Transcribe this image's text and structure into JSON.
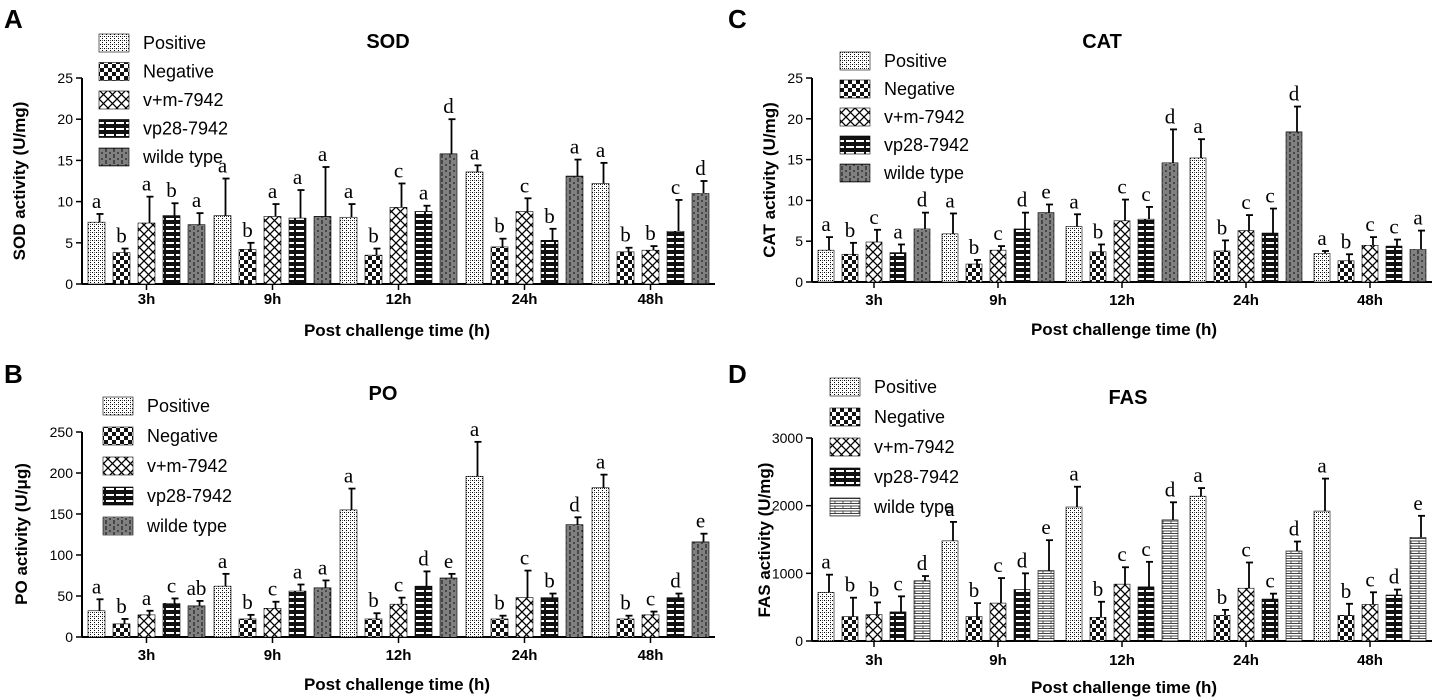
{
  "figure": {
    "legend_entries": [
      "Positive",
      "Negative",
      "v+m-7942",
      "vp28-7942",
      "wilde type"
    ]
  },
  "chart_data": [
    {
      "panel": "A",
      "type": "bar",
      "title": "SOD",
      "xlabel": "Post challenge time (h)",
      "ylabel": "SOD activity (U/mg)",
      "ylim": [
        0,
        25
      ],
      "yticks": [
        0,
        5,
        10,
        15,
        20,
        25
      ],
      "categories": [
        "3h",
        "9h",
        "12h",
        "24h",
        "48h"
      ],
      "legend": "top-left",
      "series": [
        {
          "name": "Positive",
          "values": [
            7.5,
            8.3,
            8.1,
            13.6,
            12.2
          ],
          "errors": [
            1.0,
            4.5,
            1.6,
            0.8,
            2.5
          ],
          "labels": [
            "a",
            "a",
            "a",
            "a",
            "a"
          ]
        },
        {
          "name": "Negative",
          "values": [
            3.8,
            4.2,
            3.5,
            4.5,
            3.9
          ],
          "errors": [
            0.5,
            0.8,
            0.8,
            1.0,
            0.5
          ],
          "labels": [
            "b",
            "b",
            "b",
            "b",
            "b"
          ]
        },
        {
          "name": "v+m-7942",
          "values": [
            7.4,
            8.2,
            9.3,
            8.8,
            4.1
          ],
          "errors": [
            3.2,
            1.5,
            2.9,
            1.6,
            0.5
          ],
          "labels": [
            "a",
            "a",
            "c",
            "c",
            "b"
          ]
        },
        {
          "name": "vp28-7942",
          "values": [
            8.3,
            8.0,
            8.8,
            5.3,
            6.4
          ],
          "errors": [
            1.5,
            3.4,
            0.7,
            1.4,
            3.8
          ],
          "labels": [
            "b",
            "a",
            "a",
            "b",
            "c"
          ]
        },
        {
          "name": "wilde type",
          "values": [
            7.2,
            8.2,
            15.8,
            13.1,
            11.0
          ],
          "errors": [
            1.4,
            6.0,
            4.2,
            2.0,
            1.5
          ],
          "labels": [
            "a",
            "a",
            "d",
            "a",
            "d"
          ]
        }
      ]
    },
    {
      "panel": "B",
      "type": "bar",
      "title": "PO",
      "xlabel": "Post challenge time (h)",
      "ylabel": "PO activity (U/μg)",
      "ylim": [
        0,
        250
      ],
      "yticks": [
        0,
        50,
        100,
        150,
        200,
        250
      ],
      "categories": [
        "3h",
        "9h",
        "12h",
        "24h",
        "48h"
      ],
      "legend": "top-left",
      "series": [
        {
          "name": "Positive",
          "values": [
            32,
            62,
            155,
            196,
            182
          ],
          "errors": [
            14,
            15,
            26,
            42,
            16
          ],
          "labels": [
            "a",
            "a",
            "a",
            "a",
            "a"
          ]
        },
        {
          "name": "Negative",
          "values": [
            16,
            22,
            22,
            22,
            22
          ],
          "errors": [
            6,
            5,
            7,
            4,
            4
          ],
          "labels": [
            "b",
            "b",
            "b",
            "b",
            "b"
          ]
        },
        {
          "name": "v+m-7942",
          "values": [
            27,
            35,
            40,
            48,
            27
          ],
          "errors": [
            5,
            8,
            8,
            33,
            4
          ],
          "labels": [
            "a",
            "c",
            "c",
            "c",
            "c"
          ]
        },
        {
          "name": "vp28-7942",
          "values": [
            41,
            56,
            62,
            48,
            48
          ],
          "errors": [
            6,
            8,
            18,
            5,
            5
          ],
          "labels": [
            "c",
            "a",
            "d",
            "b",
            "d"
          ]
        },
        {
          "name": "wilde type",
          "values": [
            38,
            60,
            72,
            137,
            116
          ],
          "errors": [
            6,
            9,
            5,
            9,
            10
          ],
          "labels": [
            "ab",
            "a",
            "e",
            "d",
            "e"
          ]
        }
      ]
    },
    {
      "panel": "C",
      "type": "bar",
      "title": "CAT",
      "xlabel": "Post challenge time (h)",
      "ylabel": "CAT activity (U/mg)",
      "ylim": [
        0,
        25
      ],
      "yticks": [
        0,
        5,
        10,
        15,
        20,
        25
      ],
      "categories": [
        "3h",
        "9h",
        "12h",
        "24h",
        "48h"
      ],
      "legend": "top-left",
      "series": [
        {
          "name": "Positive",
          "values": [
            3.9,
            5.9,
            6.8,
            15.2,
            3.5
          ],
          "errors": [
            1.6,
            2.5,
            1.5,
            2.3,
            0.3
          ],
          "labels": [
            "a",
            "a",
            "a",
            "a",
            "a"
          ]
        },
        {
          "name": "Negative",
          "values": [
            3.4,
            2.2,
            3.7,
            3.8,
            2.6
          ],
          "errors": [
            1.4,
            0.5,
            0.9,
            1.3,
            0.8
          ],
          "labels": [
            "b",
            "b",
            "b",
            "b",
            "b"
          ]
        },
        {
          "name": "v+m-7942",
          "values": [
            4.9,
            3.9,
            7.5,
            6.3,
            4.5
          ],
          "errors": [
            1.5,
            0.5,
            2.6,
            1.9,
            1.0
          ],
          "labels": [
            "c",
            "c",
            "c",
            "c",
            "c"
          ]
        },
        {
          "name": "vp28-7942",
          "values": [
            3.6,
            6.5,
            7.7,
            6.0,
            4.4
          ],
          "errors": [
            1.0,
            2.0,
            1.5,
            3.0,
            0.8
          ],
          "labels": [
            "a",
            "d",
            "c",
            "c",
            "c"
          ]
        },
        {
          "name": "wilde type",
          "values": [
            6.5,
            8.5,
            14.6,
            18.4,
            4.0
          ],
          "errors": [
            2.0,
            1.0,
            4.1,
            3.1,
            2.3
          ],
          "labels": [
            "d",
            "e",
            "d",
            "d",
            "a"
          ]
        }
      ]
    },
    {
      "panel": "D",
      "type": "bar",
      "title": "FAS",
      "xlabel": "Post challenge time (h)",
      "ylabel": "FAS activity (U/mg)",
      "ylim": [
        0,
        3000
      ],
      "yticks": [
        0,
        1000,
        2000,
        3000
      ],
      "categories": [
        "3h",
        "9h",
        "12h",
        "24h",
        "48h"
      ],
      "legend": "top-left",
      "series": [
        {
          "name": "Positive",
          "values": [
            720,
            1480,
            1980,
            2140,
            1920
          ],
          "errors": [
            260,
            280,
            300,
            120,
            480
          ],
          "labels": [
            "a",
            "a",
            "a",
            "a",
            "a"
          ]
        },
        {
          "name": "Negative",
          "values": [
            360,
            360,
            350,
            380,
            380
          ],
          "errors": [
            280,
            200,
            230,
            80,
            170
          ],
          "labels": [
            "b",
            "b",
            "b",
            "b",
            "b"
          ]
        },
        {
          "name": "v+m-7942",
          "values": [
            390,
            560,
            840,
            780,
            540
          ],
          "errors": [
            180,
            370,
            250,
            380,
            180
          ],
          "labels": [
            "b",
            "c",
            "c",
            "c",
            "c"
          ]
        },
        {
          "name": "vp28-7942",
          "values": [
            430,
            760,
            800,
            620,
            680
          ],
          "errors": [
            230,
            240,
            370,
            80,
            80
          ],
          "labels": [
            "c",
            "d",
            "c",
            "c",
            "d"
          ]
        },
        {
          "name": "wilde type",
          "values": [
            890,
            1040,
            1790,
            1330,
            1530
          ],
          "errors": [
            70,
            450,
            260,
            140,
            320
          ],
          "labels": [
            "d",
            "e",
            "d",
            "d",
            "e"
          ]
        }
      ]
    }
  ]
}
